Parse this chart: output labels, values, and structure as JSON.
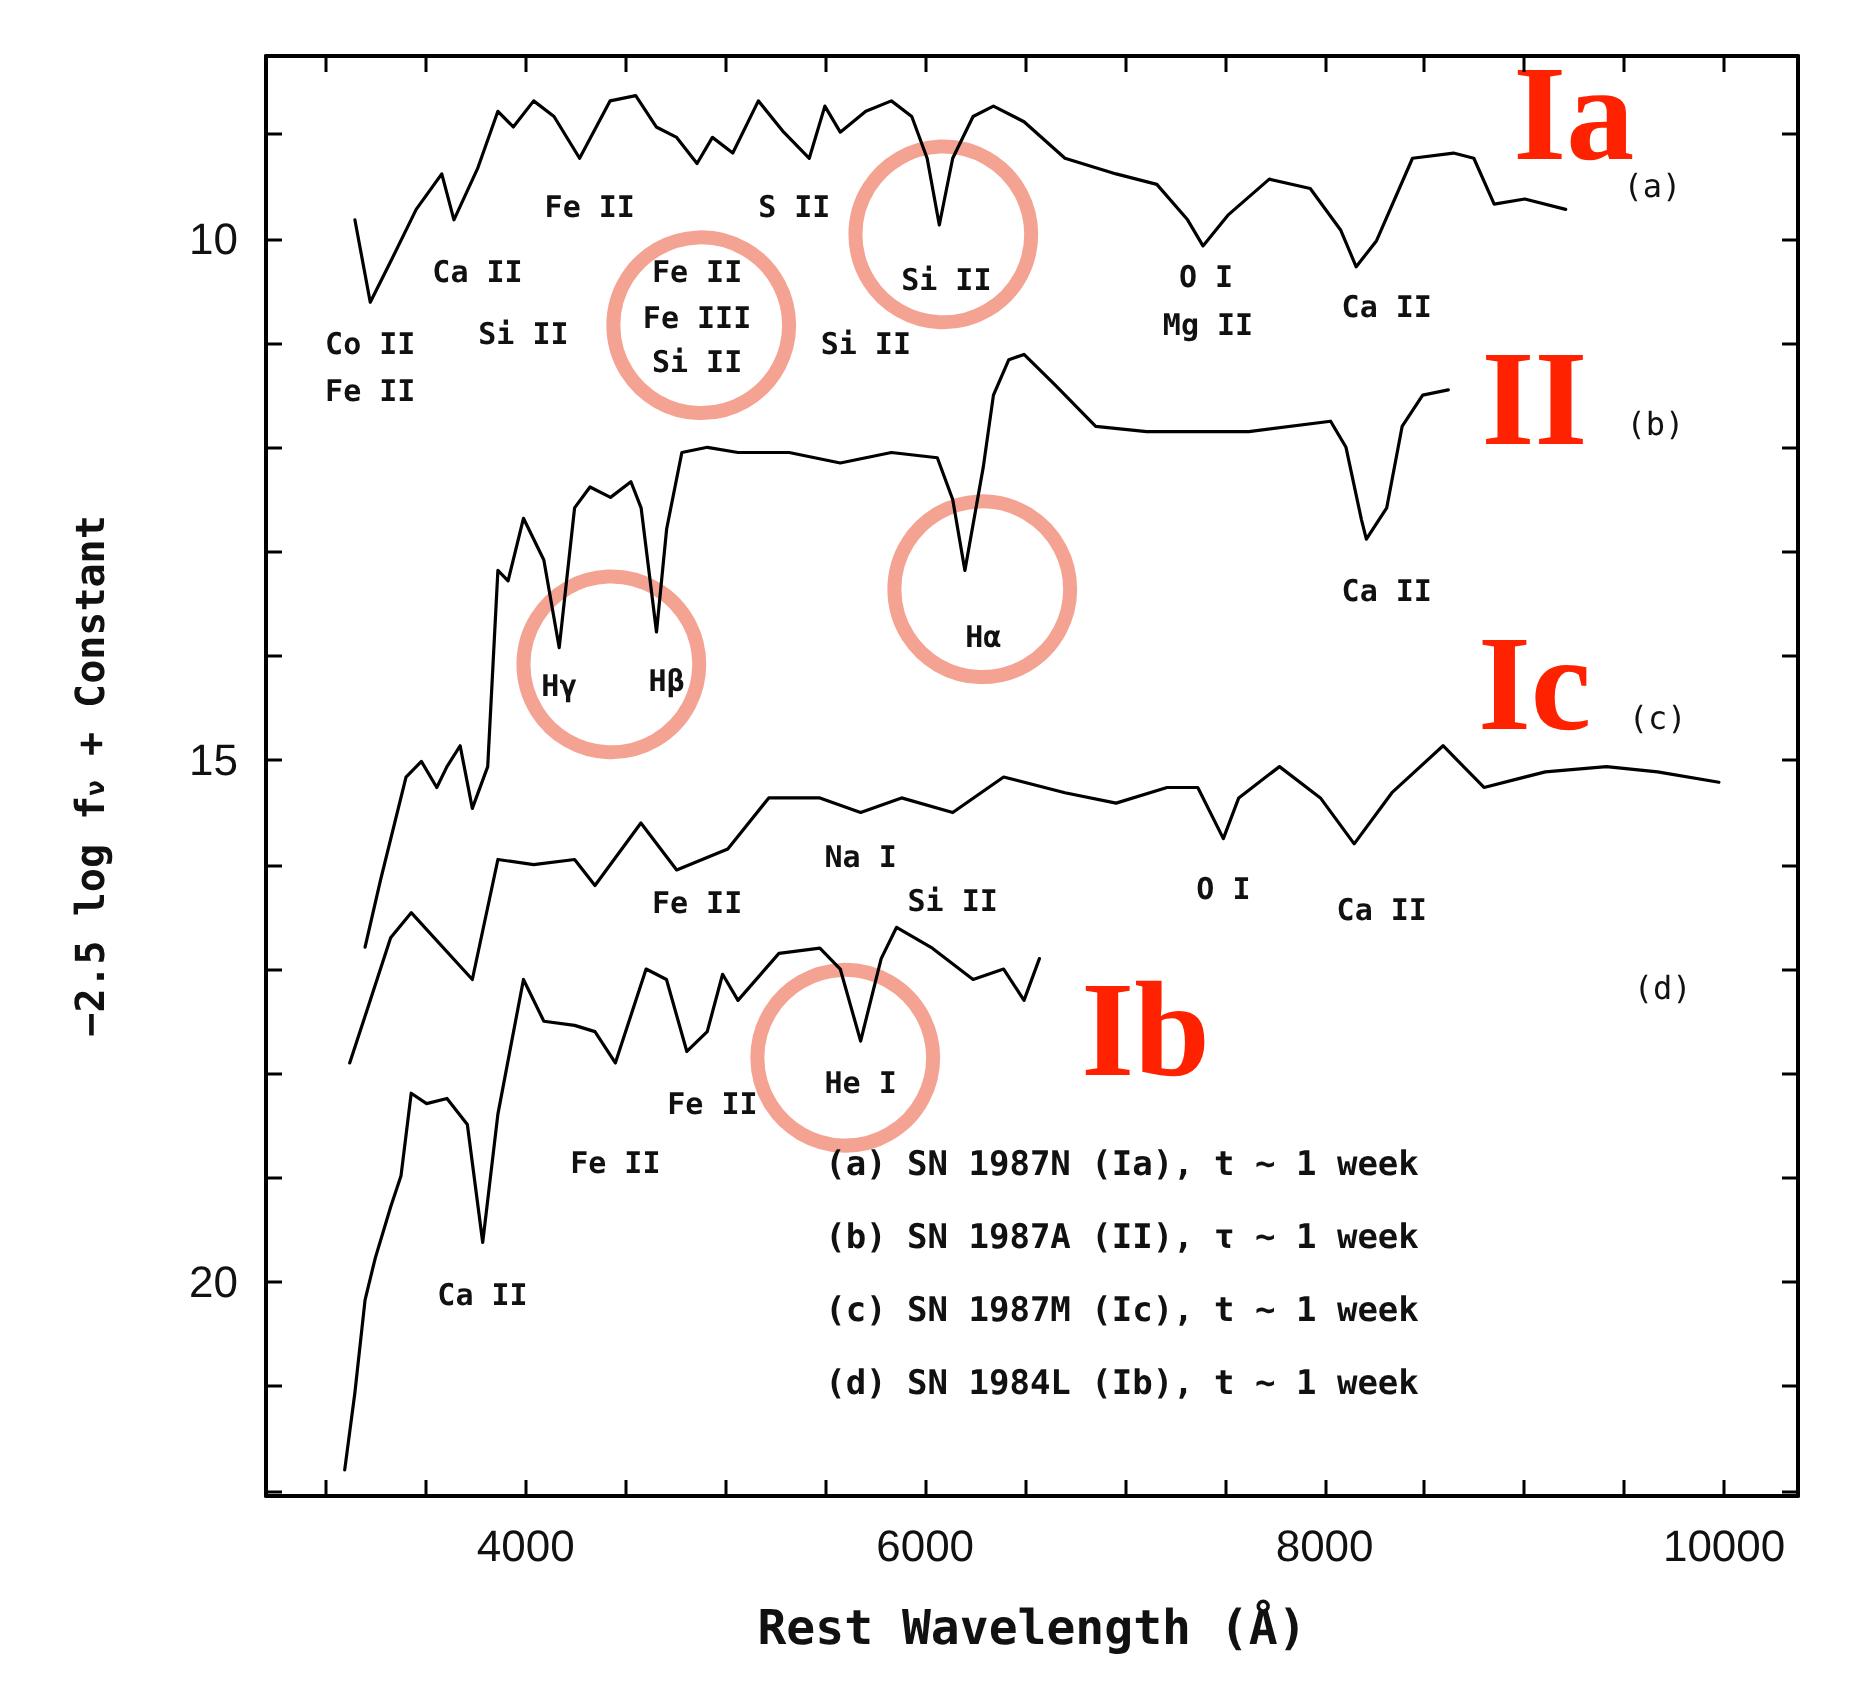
{
  "chart_data": {
    "type": "line",
    "xlabel": "Rest Wavelength (Å)",
    "ylabel": "−2.5 log f$_{ν}$ + Constant",
    "xlim": [
      2700,
      10370
    ],
    "ylim": [
      22.05,
      8.25
    ],
    "xticks": [
      {
        "value": 3000,
        "label": null
      },
      {
        "value": 3500,
        "label": null
      },
      4000,
      {
        "value": 4500,
        "label": null
      },
      {
        "value": 5000,
        "label": null
      },
      {
        "value": 5500,
        "label": null
      },
      6000,
      {
        "value": 6500,
        "label": null
      },
      {
        "value": 7000,
        "label": null
      },
      {
        "value": 7500,
        "label": null
      },
      8000,
      {
        "value": 8500,
        "label": null
      },
      {
        "value": 9000,
        "label": null
      },
      {
        "value": 9500,
        "label": null
      },
      10000
    ],
    "yticks": [
      {
        "value": 9,
        "label": null
      },
      10,
      {
        "value": 11,
        "label": null
      },
      {
        "value": 12,
        "label": null
      },
      {
        "value": 13,
        "label": null
      },
      {
        "value": 14,
        "label": null
      },
      15,
      {
        "value": 16,
        "label": null
      },
      {
        "value": 17,
        "label": null
      },
      {
        "value": 18,
        "label": null
      },
      {
        "value": 19,
        "label": null
      },
      20,
      {
        "value": 21,
        "label": null
      },
      {
        "value": 22,
        "label": null
      }
    ],
    "grid": false,
    "marker": "none",
    "line_style": "solid",
    "series": [
      {
        "color": "#000000",
        "x": [
          3145,
          3222,
          3324,
          3452,
          3580,
          3641,
          3759,
          3861,
          3938,
          4040,
          4142,
          4270,
          4423,
          4551,
          4654,
          4756,
          4858,
          4935,
          5037,
          5165,
          5292,
          5420,
          5498,
          5575,
          5703,
          5831,
          5933,
          6010,
          6071,
          6138,
          6240,
          6342,
          6495,
          6700,
          6956,
          7160,
          7314,
          7391,
          7519,
          7723,
          7928,
          8081,
          8158,
          8260,
          8440,
          8645,
          8747,
          8849,
          9002,
          9207
        ],
        "values": [
          9.82,
          10.61,
          10.22,
          9.72,
          9.38,
          9.82,
          9.33,
          8.78,
          8.93,
          8.68,
          8.83,
          9.23,
          8.68,
          8.63,
          8.93,
          9.03,
          9.28,
          9.03,
          9.18,
          8.68,
          8.98,
          9.23,
          8.73,
          8.98,
          8.78,
          8.68,
          8.83,
          9.23,
          9.87,
          9.23,
          8.83,
          8.73,
          8.88,
          9.23,
          9.38,
          9.48,
          9.82,
          10.07,
          9.77,
          9.43,
          9.52,
          9.92,
          10.27,
          10.02,
          9.23,
          9.18,
          9.23,
          9.67,
          9.62,
          9.72
        ]
      },
      {
        "color": "#000000",
        "x": [
          3196,
          3273,
          3401,
          3478,
          3555,
          3606,
          3672,
          3733,
          3810,
          3861,
          3912,
          3989,
          4091,
          4168,
          4245,
          4322,
          4425,
          4527,
          4578,
          4655,
          4706,
          4782,
          4910,
          5063,
          5319,
          5575,
          5831,
          6061,
          6138,
          6199,
          6291,
          6342,
          6419,
          6495,
          6649,
          6854,
          7109,
          7621,
          8030,
          8107,
          8184,
          8209,
          8311,
          8388,
          8491,
          8619
        ],
        "values": [
          16.79,
          16.15,
          15.16,
          15.01,
          15.26,
          15.06,
          14.86,
          15.46,
          15.06,
          13.18,
          13.28,
          12.68,
          13.08,
          13.92,
          12.58,
          12.38,
          12.48,
          12.33,
          12.58,
          13.77,
          12.78,
          12.05,
          12.0,
          12.05,
          12.05,
          12.15,
          12.05,
          12.1,
          12.5,
          13.18,
          12.19,
          11.5,
          11.16,
          11.11,
          11.4,
          11.8,
          11.85,
          11.85,
          11.75,
          12.0,
          12.69,
          12.88,
          12.58,
          11.8,
          11.5,
          11.45
        ]
      },
      {
        "color": "#000000",
        "x": [
          3119,
          3222,
          3324,
          3427,
          3733,
          3861,
          4040,
          4245,
          4347,
          4577,
          4756,
          5012,
          5217,
          5473,
          5677,
          5882,
          6138,
          6393,
          6700,
          6956,
          7211,
          7365,
          7493,
          7570,
          7774,
          7979,
          8148,
          8337,
          8593,
          8798,
          9105,
          9411,
          9667,
          9974
        ],
        "values": [
          17.9,
          17.3,
          16.7,
          16.46,
          17.1,
          15.95,
          16.0,
          15.95,
          16.2,
          15.6,
          16.05,
          15.85,
          15.36,
          15.36,
          15.5,
          15.36,
          15.5,
          15.16,
          15.31,
          15.41,
          15.26,
          15.26,
          15.75,
          15.36,
          15.06,
          15.36,
          15.8,
          15.31,
          14.86,
          15.26,
          15.11,
          15.06,
          15.11,
          15.21
        ]
      },
      {
        "color": "#000000",
        "x": [
          3094,
          3145,
          3196,
          3247,
          3324,
          3376,
          3427,
          3504,
          3606,
          3708,
          3785,
          3861,
          3989,
          4091,
          4245,
          4347,
          4449,
          4603,
          4705,
          4807,
          4909,
          4986,
          5063,
          5268,
          5473,
          5575,
          5677,
          5780,
          5857,
          6036,
          6240,
          6393,
          6495,
          6572
        ],
        "values": [
          21.8,
          21.06,
          20.17,
          19.77,
          19.28,
          18.98,
          18.19,
          18.29,
          18.24,
          18.49,
          19.62,
          18.39,
          17.1,
          17.5,
          17.54,
          17.6,
          17.9,
          17.0,
          17.1,
          17.79,
          17.6,
          17.05,
          17.3,
          16.85,
          16.8,
          17.0,
          17.69,
          16.9,
          16.6,
          16.8,
          17.1,
          17.0,
          17.3,
          16.9
        ]
      }
    ],
    "annotations": [
      "Ia",
      "II",
      "Ic",
      "Ib",
      "(a)",
      "(b)",
      "(c)",
      "(d)",
      "Co II",
      "Fe II",
      "Ca II",
      "Fe II",
      "Si II",
      "Fe II",
      "Fe III",
      "Si II",
      "S II",
      "Si II",
      "Si II",
      "O I",
      "Mg II",
      "Ca II",
      "Ca II",
      "Hγ",
      "Hβ",
      "Hα",
      "Na I",
      "Si II",
      "Fe II",
      "O I",
      "Ca II",
      "Fe II",
      "He I",
      "Fe II",
      "Ca II",
      "(a) SN 1987N (Ia), t ~ 1 week",
      "(b) SN 1987A (II), τ ~ 1 week",
      "(c) SN 1987M (Ic), t ~ 1 week",
      "(d) SN 1984L (Ib), t ~ 1 week"
    ]
  }
}
